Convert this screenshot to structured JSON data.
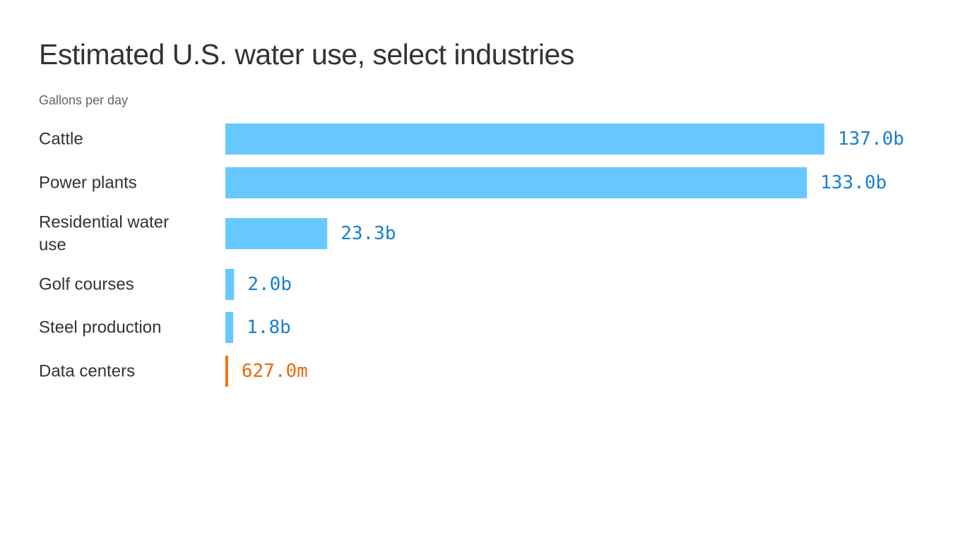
{
  "chart_data": {
    "type": "bar",
    "orientation": "horizontal",
    "title": "Estimated U.S. water use, select industries",
    "subtitle": "Gallons per day",
    "categories": [
      "Cattle",
      "Power plants",
      "Residential water use",
      "Golf courses",
      "Steel production",
      "Data centers"
    ],
    "category_lines": [
      [
        "Cattle"
      ],
      [
        "Power plants"
      ],
      [
        "Residential water",
        "use"
      ],
      [
        "Golf courses"
      ],
      [
        "Steel production"
      ],
      [
        "Data centers"
      ]
    ],
    "values": [
      137000000000,
      133000000000,
      23300000000,
      2000000000,
      1800000000,
      627000000
    ],
    "value_labels": [
      "137.0b",
      "133.0b",
      "23.3b",
      "2.0b",
      "1.8b",
      "627.0m"
    ],
    "highlight": "Data centers",
    "colors": {
      "bar": "#66c8ff",
      "label": "#1a7fd0",
      "highlight_bar": "#f0730a",
      "highlight_label": "#e8690a"
    }
  }
}
